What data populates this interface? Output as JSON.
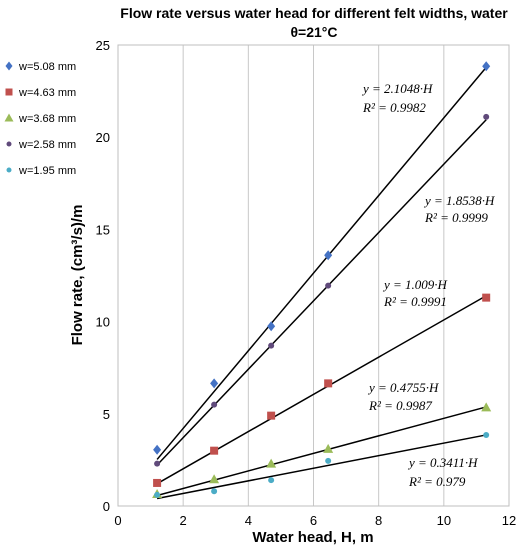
{
  "chart_data": {
    "type": "scatter",
    "title_line1": "Flow rate versus water head for different felt widths, water",
    "title_line2": "θ=21°C",
    "xlabel": "Water head, H, m",
    "ylabel": "Flow rate, (cm³/s)/m",
    "xlim": [
      0,
      12
    ],
    "ylim": [
      0,
      25
    ],
    "xticks": [
      0,
      2,
      4,
      6,
      8,
      10,
      12
    ],
    "yticks": [
      0,
      5,
      10,
      15,
      20,
      25
    ],
    "grid": "vertical",
    "legend_position": "left",
    "series": [
      {
        "name": "w=5.08 mm",
        "color": "#4472C4",
        "marker": "diamond",
        "x": [
          1.2,
          2.95,
          4.7,
          6.45,
          11.3
        ],
        "y": [
          3.05,
          6.65,
          9.75,
          13.6,
          23.85
        ],
        "fit_slope": 2.1048,
        "fit_equation": "y = 2.1048·H",
        "fit_r2": "R² = 0.9982"
      },
      {
        "name": "w=4.63 mm",
        "color": "#C0504D",
        "marker": "square",
        "x": [
          1.2,
          2.95,
          4.7,
          6.45,
          11.3
        ],
        "y": [
          1.25,
          3.0,
          4.9,
          6.65,
          11.3
        ],
        "fit_slope": 1.009,
        "fit_equation": "y = 1.009·H",
        "fit_r2": "R² = 0.9991"
      },
      {
        "name": "w=3.68 mm",
        "color": "#9BBB59",
        "marker": "triangle",
        "x": [
          1.2,
          2.95,
          4.7,
          6.45,
          11.3
        ],
        "y": [
          0.65,
          1.45,
          2.3,
          3.1,
          5.35
        ],
        "fit_slope": 0.4755,
        "fit_equation": "y = 0.4755·H",
        "fit_r2": "R² = 0.9987"
      },
      {
        "name": "w=2.58 mm",
        "color": "#604A7B",
        "marker": "circle",
        "x": [
          1.2,
          2.95,
          4.7,
          6.45,
          11.3
        ],
        "y": [
          2.3,
          5.5,
          8.7,
          11.95,
          21.1
        ],
        "fit_slope": 1.8538,
        "fit_equation": "y = 1.8538·H",
        "fit_r2": "R² = 0.9999"
      },
      {
        "name": "w=1.95 mm",
        "color": "#4BACC6",
        "marker": "circle",
        "x": [
          1.2,
          2.95,
          4.7,
          6.45,
          11.3
        ],
        "y": [
          0.6,
          0.8,
          1.4,
          2.45,
          3.85
        ],
        "fit_slope": 0.3411,
        "fit_equation": "y = 0.3411·H",
        "fit_r2": "R² = 0.979"
      }
    ]
  }
}
